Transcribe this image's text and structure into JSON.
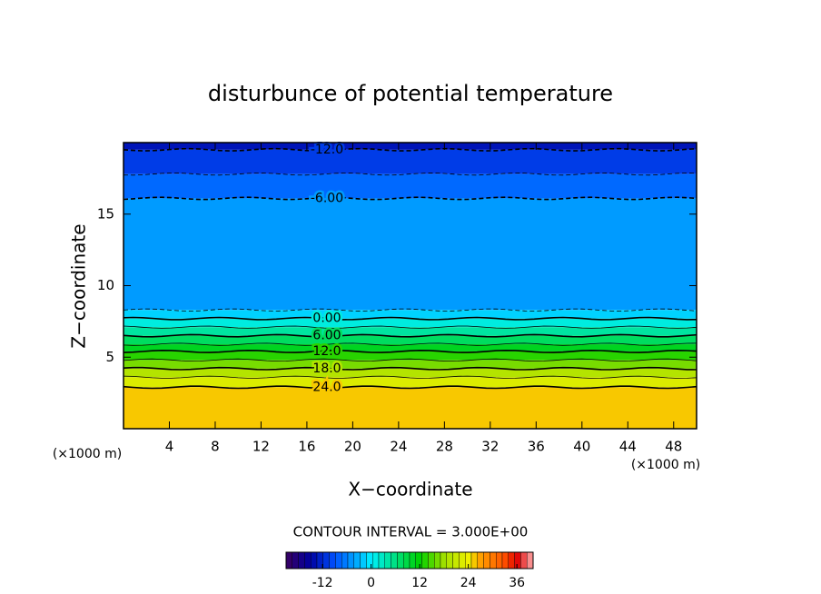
{
  "chart_data": {
    "type": "contour",
    "title": "disturbunce of potential temperature",
    "x_label": "X−coordinate",
    "y_label": "Z−coordinate",
    "x_unit": "(×1000 m)",
    "y_unit": "(×1000 m)",
    "xlim": [
      0,
      50
    ],
    "ylim": [
      0,
      20
    ],
    "xticks": [
      4,
      8,
      12,
      16,
      20,
      24,
      28,
      32,
      36,
      40,
      44,
      48
    ],
    "yticks": [
      5,
      10,
      15
    ],
    "contours": {
      "levels": [
        -12,
        -9,
        -6,
        -3,
        0,
        3,
        6,
        9,
        12,
        15,
        18,
        21,
        24
      ],
      "heights": [
        19.5,
        17.8,
        16.1,
        8.3,
        7.7,
        7.1,
        6.5,
        5.9,
        5.4,
        4.8,
        4.2,
        3.6,
        2.9
      ],
      "value_labels": [
        "-12.0",
        null,
        "-6.00",
        null,
        "0.00",
        null,
        "6.00",
        null,
        "12.0",
        null,
        "18.0",
        null,
        "24.0"
      ]
    },
    "contour_interval_text": "CONTOUR INTERVAL = 3.000E+00",
    "colorbar": {
      "clim": [
        -21,
        40
      ],
      "ticks": [
        -12,
        0,
        12,
        24,
        36
      ]
    },
    "colormap": [
      [
        -21,
        "#3a0060"
      ],
      [
        -15,
        "#0000a0"
      ],
      [
        -9,
        "#0050ff"
      ],
      [
        -3,
        "#00b4ff"
      ],
      [
        0,
        "#00f0ff"
      ],
      [
        6,
        "#00e080"
      ],
      [
        12,
        "#00d000"
      ],
      [
        18,
        "#a0e000"
      ],
      [
        24,
        "#f0f000"
      ],
      [
        27,
        "#ffa000"
      ],
      [
        33,
        "#ff5000"
      ],
      [
        36,
        "#e00000"
      ],
      [
        40,
        "#ffb0b0"
      ]
    ]
  }
}
